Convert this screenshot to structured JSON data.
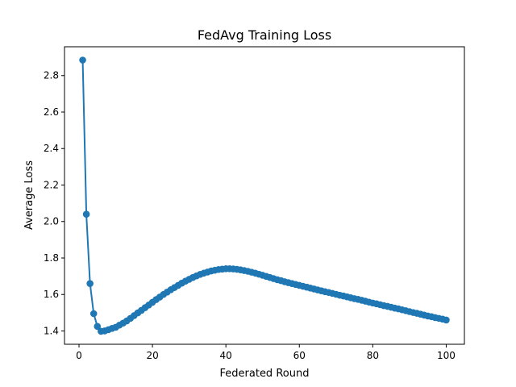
{
  "chart_data": {
    "type": "line",
    "title": "FedAvg Training Loss",
    "xlabel": "Federated Round",
    "ylabel": "Average Loss",
    "xlim": [
      -3.95,
      104.95
    ],
    "ylim": [
      1.327,
      2.958
    ],
    "xticks": [
      0,
      20,
      40,
      60,
      80,
      100
    ],
    "xtick_labels": [
      "0",
      "20",
      "40",
      "60",
      "80",
      "100"
    ],
    "yticks": [
      1.4,
      1.6,
      1.8,
      2.0,
      2.2,
      2.4,
      2.6,
      2.8
    ],
    "ytick_labels": [
      "1.4",
      "1.6",
      "1.8",
      "2.0",
      "2.2",
      "2.4",
      "2.6",
      "2.8"
    ],
    "grid": false,
    "legend": "none",
    "marker": "circle",
    "color": "#1f77b4",
    "series": [
      {
        "x": [
          1,
          2,
          3,
          4,
          5,
          6,
          7,
          8,
          9,
          10,
          11,
          12,
          13,
          14,
          15,
          16,
          17,
          18,
          19,
          20,
          21,
          22,
          23,
          24,
          25,
          26,
          27,
          28,
          29,
          30,
          31,
          32,
          33,
          34,
          35,
          36,
          37,
          38,
          39,
          40,
          41,
          42,
          43,
          44,
          45,
          46,
          47,
          48,
          49,
          50,
          51,
          52,
          53,
          54,
          55,
          56,
          57,
          58,
          59,
          60,
          61,
          62,
          63,
          64,
          65,
          66,
          67,
          68,
          69,
          70,
          71,
          72,
          73,
          74,
          75,
          76,
          77,
          78,
          79,
          80,
          81,
          82,
          83,
          84,
          85,
          86,
          87,
          88,
          89,
          90,
          91,
          92,
          93,
          94,
          95,
          96,
          97,
          98,
          99,
          100
        ],
        "values": [
          2.885,
          2.04,
          1.66,
          1.495,
          1.425,
          1.398,
          1.4,
          1.407,
          1.414,
          1.42,
          1.432,
          1.443,
          1.455,
          1.469,
          1.484,
          1.499,
          1.513,
          1.528,
          1.542,
          1.557,
          1.572,
          1.586,
          1.6,
          1.613,
          1.626,
          1.638,
          1.65,
          1.662,
          1.673,
          1.683,
          1.693,
          1.702,
          1.71,
          1.717,
          1.723,
          1.729,
          1.733,
          1.737,
          1.739,
          1.741,
          1.741,
          1.74,
          1.738,
          1.735,
          1.731,
          1.727,
          1.722,
          1.717,
          1.711,
          1.705,
          1.699,
          1.693,
          1.687,
          1.681,
          1.676,
          1.67,
          1.665,
          1.66,
          1.655,
          1.65,
          1.645,
          1.64,
          1.635,
          1.63,
          1.625,
          1.62,
          1.615,
          1.611,
          1.606,
          1.601,
          1.596,
          1.592,
          1.587,
          1.582,
          1.577,
          1.573,
          1.568,
          1.563,
          1.558,
          1.553,
          1.549,
          1.544,
          1.539,
          1.535,
          1.53,
          1.525,
          1.521,
          1.516,
          1.511,
          1.506,
          1.501,
          1.497,
          1.492,
          1.487,
          1.482,
          1.478,
          1.473,
          1.469,
          1.465,
          1.46
        ]
      }
    ]
  }
}
